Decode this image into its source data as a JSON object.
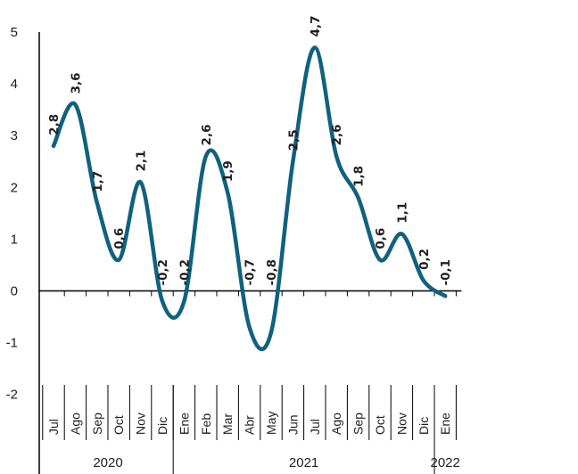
{
  "chart_data": {
    "type": "line",
    "title": "",
    "xlabel": "",
    "ylabel": "",
    "ylim": [
      -2,
      5
    ],
    "yticks": [
      5,
      4,
      3,
      2,
      1,
      0,
      -1,
      -2
    ],
    "grid": false,
    "line_color": "#10617f",
    "categories": [
      "Jul",
      "Ago",
      "Sep",
      "Oct",
      "Nov",
      "Dic",
      "Ene",
      "Feb",
      "Mar",
      "Abr",
      "May",
      "Jun",
      "Jul",
      "Ago",
      "Sep",
      "Oct",
      "Nov",
      "Dic",
      "Ene"
    ],
    "year_groups": [
      {
        "label": "2020",
        "start": 0,
        "end": 5
      },
      {
        "label": "2021",
        "start": 6,
        "end": 17
      },
      {
        "label": "2022",
        "start": 18,
        "end": 18
      }
    ],
    "series": [
      {
        "values": [
          2.8,
          3.6,
          1.7,
          0.6,
          2.1,
          -0.2,
          -0.2,
          2.6,
          1.9,
          -0.7,
          -0.8,
          2.5,
          4.7,
          2.6,
          1.8,
          0.6,
          1.1,
          0.2,
          -0.1
        ],
        "labels": [
          "2,8",
          "3,6",
          "1,7",
          "0,6",
          "2,1",
          "-0,2",
          "-0,2",
          "2,6",
          "1,9",
          "-0,7",
          "-0,8",
          "2,5",
          "4,7",
          "2,6",
          "1,8",
          "0,6",
          "1,1",
          "0,2",
          "-0,1"
        ]
      }
    ]
  }
}
